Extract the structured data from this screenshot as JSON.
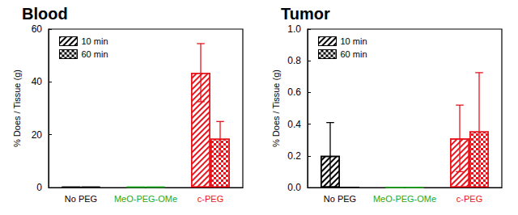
{
  "chart_data": [
    {
      "type": "bar",
      "title": "Blood",
      "ylabel": "% Does / Tissue (g)",
      "categories": [
        "No PEG",
        "MeO-PEG-OMe",
        "c-PEG"
      ],
      "ylim": [
        0,
        60
      ],
      "yticks": [
        0,
        20,
        40,
        60
      ],
      "grid": false,
      "legend": "upper left",
      "series": [
        {
          "name": "10 min",
          "marker": "diagonal",
          "colors": [
            "#000000",
            "#22aa22",
            "#e8141c"
          ],
          "values": [
            0.3,
            0.3,
            43.5
          ],
          "errors": [
            0,
            0,
            11
          ]
        },
        {
          "name": "60 min",
          "marker": "checker",
          "colors": [
            "#000000",
            "#22aa22",
            "#e8141c"
          ],
          "values": [
            0.3,
            0.3,
            18.5
          ],
          "errors": [
            0,
            0,
            6.5
          ]
        }
      ]
    },
    {
      "type": "bar",
      "title": "Tumor",
      "ylabel": "% Does / Tissue (g)",
      "categories": [
        "No PEG",
        "MeO-PEG-OMe",
        "c-PEG"
      ],
      "ylim": [
        0,
        1.0
      ],
      "yticks": [
        {
          "value": 0,
          "label": "0.0"
        },
        0.2,
        0.4,
        0.6,
        0.8,
        {
          "value": 1.0,
          "label": "1.0"
        }
      ],
      "grid": false,
      "legend": "upper left",
      "series": [
        {
          "name": "10 min",
          "marker": "diagonal",
          "colors": [
            "#000000",
            "#22aa22",
            "#e8141c"
          ],
          "values": [
            0.2,
            0.003,
            0.31
          ],
          "errors": [
            0.21,
            0,
            0.21
          ]
        },
        {
          "name": "60 min",
          "marker": "checker",
          "colors": [
            "#000000",
            "#22aa22",
            "#e8141c"
          ],
          "values": [
            0.003,
            0.003,
            0.355
          ],
          "errors": [
            0,
            0,
            0.37
          ]
        }
      ]
    }
  ]
}
